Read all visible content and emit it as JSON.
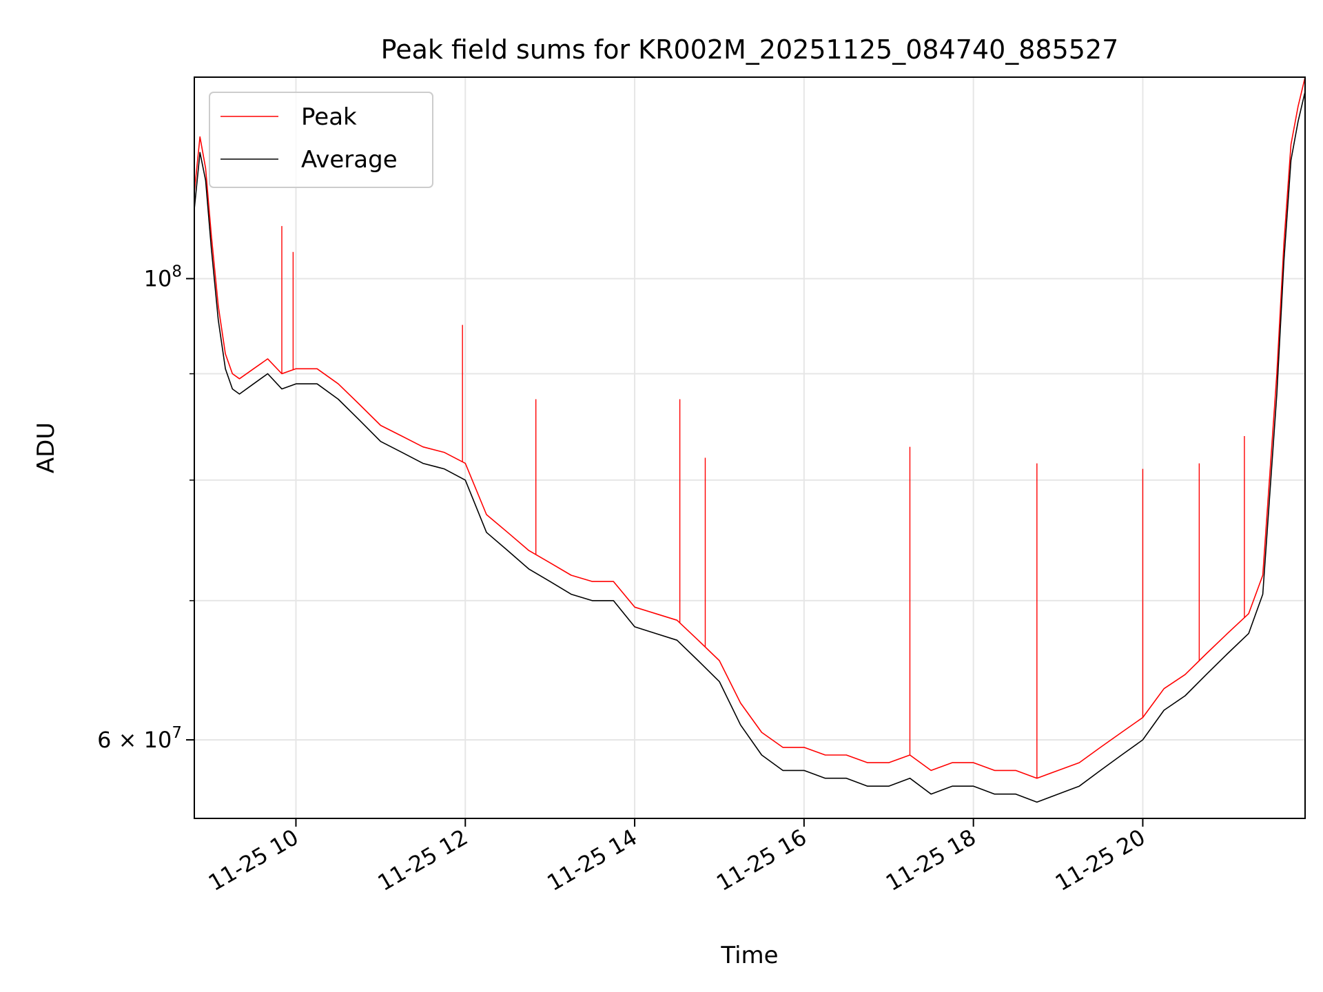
{
  "chart_data": {
    "type": "line",
    "title": "Peak field sums for KR002M_20251125_084740_885527",
    "xlabel": "Time",
    "ylabel": "ADU",
    "x_scale": "time",
    "y_scale": "log",
    "xlim": [
      "2025-11-25 08:48",
      "2025-11-25 21:55"
    ],
    "ylim": [
      55000000,
      125000000
    ],
    "x_ticks": [
      {
        "value": "2025-11-25 10:00",
        "label": "11-25 10"
      },
      {
        "value": "2025-11-25 12:00",
        "label": "11-25 12"
      },
      {
        "value": "2025-11-25 14:00",
        "label": "11-25 14"
      },
      {
        "value": "2025-11-25 16:00",
        "label": "11-25 16"
      },
      {
        "value": "2025-11-25 18:00",
        "label": "11-25 18"
      },
      {
        "value": "2025-11-25 20:00",
        "label": "11-25 20"
      }
    ],
    "y_ticks": [
      {
        "value": 100000000,
        "base": "10",
        "exp": "8"
      },
      {
        "value": 60000000,
        "mant": "6",
        "times": "×",
        "base": "10",
        "exp": "7"
      }
    ],
    "y_minor_ticks": [
      70000000,
      80000000,
      90000000
    ],
    "grid": true,
    "legend_position": "top-left",
    "series": [
      {
        "name": "Peak",
        "color": "#ff0000",
        "x": [
          "2025-11-25 08:48",
          "2025-11-25 08:52",
          "2025-11-25 08:56",
          "2025-11-25 09:00",
          "2025-11-25 09:05",
          "2025-11-25 09:10",
          "2025-11-25 09:15",
          "2025-11-25 09:20",
          "2025-11-25 09:30",
          "2025-11-25 09:40",
          "2025-11-25 09:50",
          "2025-11-25 10:00",
          "2025-11-25 10:15",
          "2025-11-25 10:30",
          "2025-11-25 10:45",
          "2025-11-25 11:00",
          "2025-11-25 11:15",
          "2025-11-25 11:30",
          "2025-11-25 11:45",
          "2025-11-25 12:00",
          "2025-11-25 12:15",
          "2025-11-25 12:30",
          "2025-11-25 12:45",
          "2025-11-25 13:00",
          "2025-11-25 13:15",
          "2025-11-25 13:30",
          "2025-11-25 13:45",
          "2025-11-25 14:00",
          "2025-11-25 14:15",
          "2025-11-25 14:30",
          "2025-11-25 14:45",
          "2025-11-25 15:00",
          "2025-11-25 15:15",
          "2025-11-25 15:30",
          "2025-11-25 15:45",
          "2025-11-25 16:00",
          "2025-11-25 16:15",
          "2025-11-25 16:30",
          "2025-11-25 16:45",
          "2025-11-25 17:00",
          "2025-11-25 17:15",
          "2025-11-25 17:30",
          "2025-11-25 17:45",
          "2025-11-25 18:00",
          "2025-11-25 18:15",
          "2025-11-25 18:30",
          "2025-11-25 18:45",
          "2025-11-25 19:00",
          "2025-11-25 19:15",
          "2025-11-25 19:30",
          "2025-11-25 19:45",
          "2025-11-25 20:00",
          "2025-11-25 20:15",
          "2025-11-25 20:30",
          "2025-11-25 20:45",
          "2025-11-25 21:00",
          "2025-11-25 21:15",
          "2025-11-25 21:25",
          "2025-11-25 21:35",
          "2025-11-25 21:40",
          "2025-11-25 21:45",
          "2025-11-25 21:50",
          "2025-11-25 21:55"
        ],
        "values": [
          110000000,
          117000000,
          113000000,
          105000000,
          97000000,
          92000000,
          90000000,
          89500000,
          90500000,
          91500000,
          90000000,
          90500000,
          90500000,
          89000000,
          87000000,
          85000000,
          84000000,
          83000000,
          82500000,
          81500000,
          77000000,
          75500000,
          74000000,
          73000000,
          72000000,
          71500000,
          71500000,
          69500000,
          69000000,
          68500000,
          67000000,
          65500000,
          62500000,
          60500000,
          59500000,
          59500000,
          59000000,
          59000000,
          58500000,
          58500000,
          59000000,
          58000000,
          58500000,
          58500000,
          58000000,
          58000000,
          57500000,
          58000000,
          58500000,
          59500000,
          60500000,
          61500000,
          63500000,
          64500000,
          66000000,
          67500000,
          69000000,
          72000000,
          90000000,
          104000000,
          116000000,
          121000000,
          125000000
        ],
        "spikes": [
          {
            "x": "2025-11-25 09:50",
            "y": 106000000
          },
          {
            "x": "2025-11-25 09:58",
            "y": 103000000
          },
          {
            "x": "2025-11-25 11:58",
            "y": 95000000
          },
          {
            "x": "2025-11-25 12:50",
            "y": 87500000
          },
          {
            "x": "2025-11-25 14:32",
            "y": 87500000
          },
          {
            "x": "2025-11-25 14:50",
            "y": 82000000
          },
          {
            "x": "2025-11-25 17:15",
            "y": 83000000
          },
          {
            "x": "2025-11-25 18:45",
            "y": 81500000
          },
          {
            "x": "2025-11-25 20:00",
            "y": 81000000
          },
          {
            "x": "2025-11-25 20:40",
            "y": 81500000
          },
          {
            "x": "2025-11-25 21:12",
            "y": 84000000
          }
        ]
      },
      {
        "name": "Average",
        "color": "#000000",
        "x": [
          "2025-11-25 08:48",
          "2025-11-25 08:52",
          "2025-11-25 08:56",
          "2025-11-25 09:00",
          "2025-11-25 09:05",
          "2025-11-25 09:10",
          "2025-11-25 09:15",
          "2025-11-25 09:20",
          "2025-11-25 09:30",
          "2025-11-25 09:40",
          "2025-11-25 09:50",
          "2025-11-25 10:00",
          "2025-11-25 10:15",
          "2025-11-25 10:30",
          "2025-11-25 10:45",
          "2025-11-25 11:00",
          "2025-11-25 11:15",
          "2025-11-25 11:30",
          "2025-11-25 11:45",
          "2025-11-25 12:00",
          "2025-11-25 12:15",
          "2025-11-25 12:30",
          "2025-11-25 12:45",
          "2025-11-25 13:00",
          "2025-11-25 13:15",
          "2025-11-25 13:30",
          "2025-11-25 13:45",
          "2025-11-25 14:00",
          "2025-11-25 14:15",
          "2025-11-25 14:30",
          "2025-11-25 14:45",
          "2025-11-25 15:00",
          "2025-11-25 15:15",
          "2025-11-25 15:30",
          "2025-11-25 15:45",
          "2025-11-25 16:00",
          "2025-11-25 16:15",
          "2025-11-25 16:30",
          "2025-11-25 16:45",
          "2025-11-25 17:00",
          "2025-11-25 17:15",
          "2025-11-25 17:30",
          "2025-11-25 17:45",
          "2025-11-25 18:00",
          "2025-11-25 18:15",
          "2025-11-25 18:30",
          "2025-11-25 18:45",
          "2025-11-25 19:00",
          "2025-11-25 19:15",
          "2025-11-25 19:30",
          "2025-11-25 19:45",
          "2025-11-25 20:00",
          "2025-11-25 20:15",
          "2025-11-25 20:30",
          "2025-11-25 20:45",
          "2025-11-25 21:00",
          "2025-11-25 21:15",
          "2025-11-25 21:25",
          "2025-11-25 21:35",
          "2025-11-25 21:40",
          "2025-11-25 21:45",
          "2025-11-25 21:50",
          "2025-11-25 21:55"
        ],
        "values": [
          108000000,
          115000000,
          111500000,
          103500000,
          95500000,
          90500000,
          88500000,
          88000000,
          89000000,
          90000000,
          88500000,
          89000000,
          89000000,
          87500000,
          85500000,
          83500000,
          82500000,
          81500000,
          81000000,
          80000000,
          75500000,
          74000000,
          72500000,
          71500000,
          70500000,
          70000000,
          70000000,
          68000000,
          67500000,
          67000000,
          65500000,
          64000000,
          61000000,
          59000000,
          58000000,
          58000000,
          57500000,
          57500000,
          57000000,
          57000000,
          57500000,
          56500000,
          57000000,
          57000000,
          56500000,
          56500000,
          56000000,
          56500000,
          57000000,
          58000000,
          59000000,
          60000000,
          62000000,
          63000000,
          64500000,
          66000000,
          67500000,
          70500000,
          88000000,
          102000000,
          114000000,
          119000000,
          123000000
        ],
        "spikes": []
      }
    ]
  }
}
